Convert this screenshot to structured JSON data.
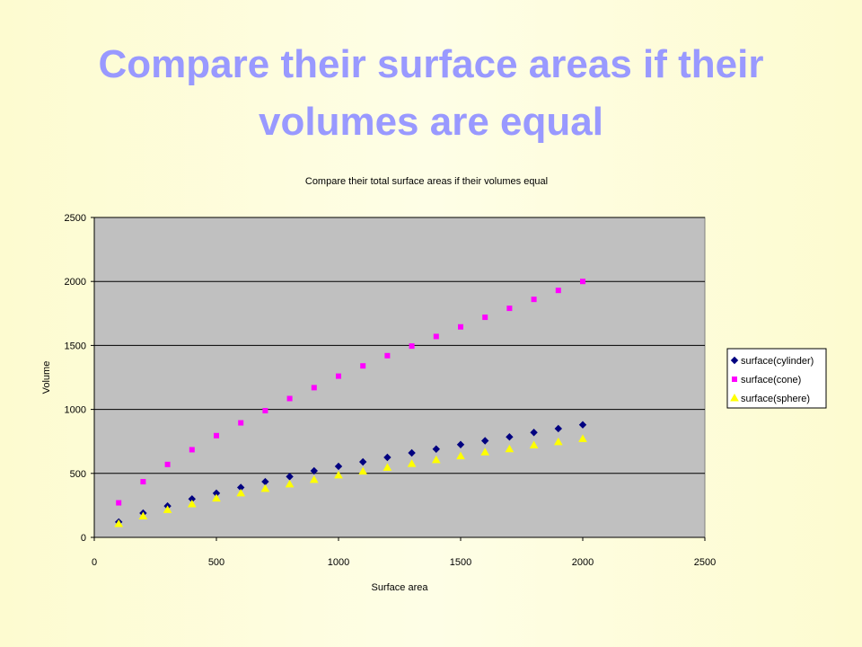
{
  "slide": {
    "title_line1": "Compare their surface areas if their",
    "title_line2": "volumes are equal"
  },
  "chart_data": {
    "type": "scatter",
    "title": "Compare their total surface areas if their volumes equal",
    "xlabel": "Surface area",
    "ylabel": "Volume",
    "xlim": [
      0,
      2500
    ],
    "ylim": [
      0,
      2500
    ],
    "xticks": [
      0,
      500,
      1000,
      1500,
      2000,
      2500
    ],
    "yticks": [
      0,
      500,
      1000,
      1500,
      2000,
      2500
    ],
    "grid": "horizontal",
    "legend_position": "right",
    "x": [
      100,
      200,
      300,
      400,
      500,
      600,
      700,
      800,
      900,
      1000,
      1100,
      1200,
      1300,
      1400,
      1500,
      1600,
      1700,
      1800,
      1900,
      2000
    ],
    "series": [
      {
        "name": "surface(cylinder)",
        "marker": "diamond",
        "color": "#000080",
        "values": [
          120,
          190,
          245,
          300,
          345,
          390,
          435,
          475,
          520,
          555,
          590,
          625,
          660,
          690,
          725,
          755,
          785,
          820,
          850,
          880
        ]
      },
      {
        "name": "surface(cone)",
        "marker": "square",
        "color": "#ff00ff",
        "values": [
          270,
          435,
          570,
          685,
          795,
          895,
          990,
          1085,
          1170,
          1260,
          1340,
          1420,
          1495,
          1570,
          1645,
          1720,
          1790,
          1860,
          1930,
          2000
        ]
      },
      {
        "name": "surface(sphere)",
        "marker": "triangle",
        "color": "#ffff00",
        "values": [
          105,
          165,
          215,
          260,
          305,
          345,
          380,
          415,
          450,
          485,
          515,
          545,
          575,
          605,
          635,
          665,
          690,
          720,
          745,
          770
        ]
      }
    ]
  },
  "colors": {
    "plot_background": "#c0c0c0",
    "title": "#9999ff"
  }
}
